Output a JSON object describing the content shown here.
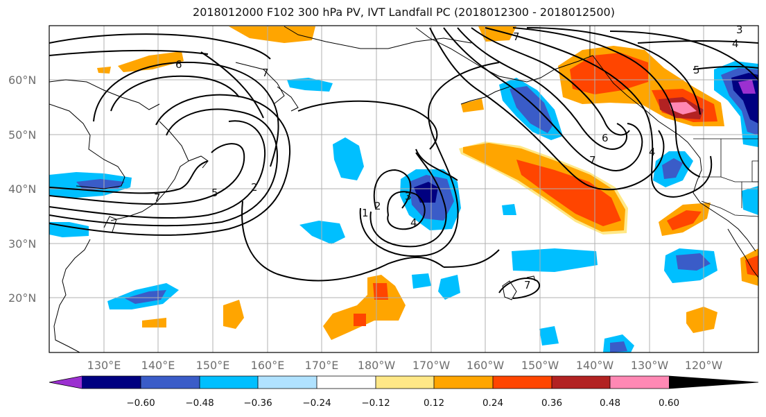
{
  "title": "2018012000 F102 300 hPa PV, IVT Landfall PC (2018012300 - 2018012500)",
  "map": {
    "lon_range": [
      120,
      250
    ],
    "lat_range": [
      10,
      70
    ],
    "lat_ticks": [
      {
        "value": 20,
        "label": "20°N"
      },
      {
        "value": 30,
        "label": "30°N"
      },
      {
        "value": 40,
        "label": "40°N"
      },
      {
        "value": 50,
        "label": "50°N"
      },
      {
        "value": 60,
        "label": "60°N"
      }
    ],
    "lon_ticks": [
      {
        "value": 130,
        "label": "130°E"
      },
      {
        "value": 140,
        "label": "140°E"
      },
      {
        "value": 150,
        "label": "150°E"
      },
      {
        "value": 160,
        "label": "160°E"
      },
      {
        "value": 170,
        "label": "170°E"
      },
      {
        "value": 180,
        "label": "180°W"
      },
      {
        "value": 190,
        "label": "170°W"
      },
      {
        "value": 200,
        "label": "160°W"
      },
      {
        "value": 210,
        "label": "150°W"
      },
      {
        "value": 220,
        "label": "140°W"
      },
      {
        "value": 230,
        "label": "130°W"
      },
      {
        "value": 240,
        "label": "120°W"
      }
    ],
    "contour_labels": [
      "6",
      "7",
      "5",
      "2",
      "7",
      "1",
      "2",
      "3",
      "4",
      "6",
      "7",
      "4",
      "5",
      "7",
      "4",
      "3",
      "7"
    ],
    "colors": {
      "grid": "#b0b0b0",
      "contour": "#000000",
      "coast": "#000000"
    }
  },
  "colorbar": {
    "colors": [
      "#9b30d0",
      "#000080",
      "#3a5cc8",
      "#00bfff",
      "#b0e2ff",
      "#ffffff",
      "#ffe887",
      "#ffa500",
      "#ff4500",
      "#b22222",
      "#ff88b4"
    ],
    "tick_labels": [
      "−0.60",
      "−0.48",
      "−0.36",
      "−0.24",
      "−0.12",
      "0.12",
      "0.24",
      "0.36",
      "0.48",
      "0.60"
    ]
  }
}
